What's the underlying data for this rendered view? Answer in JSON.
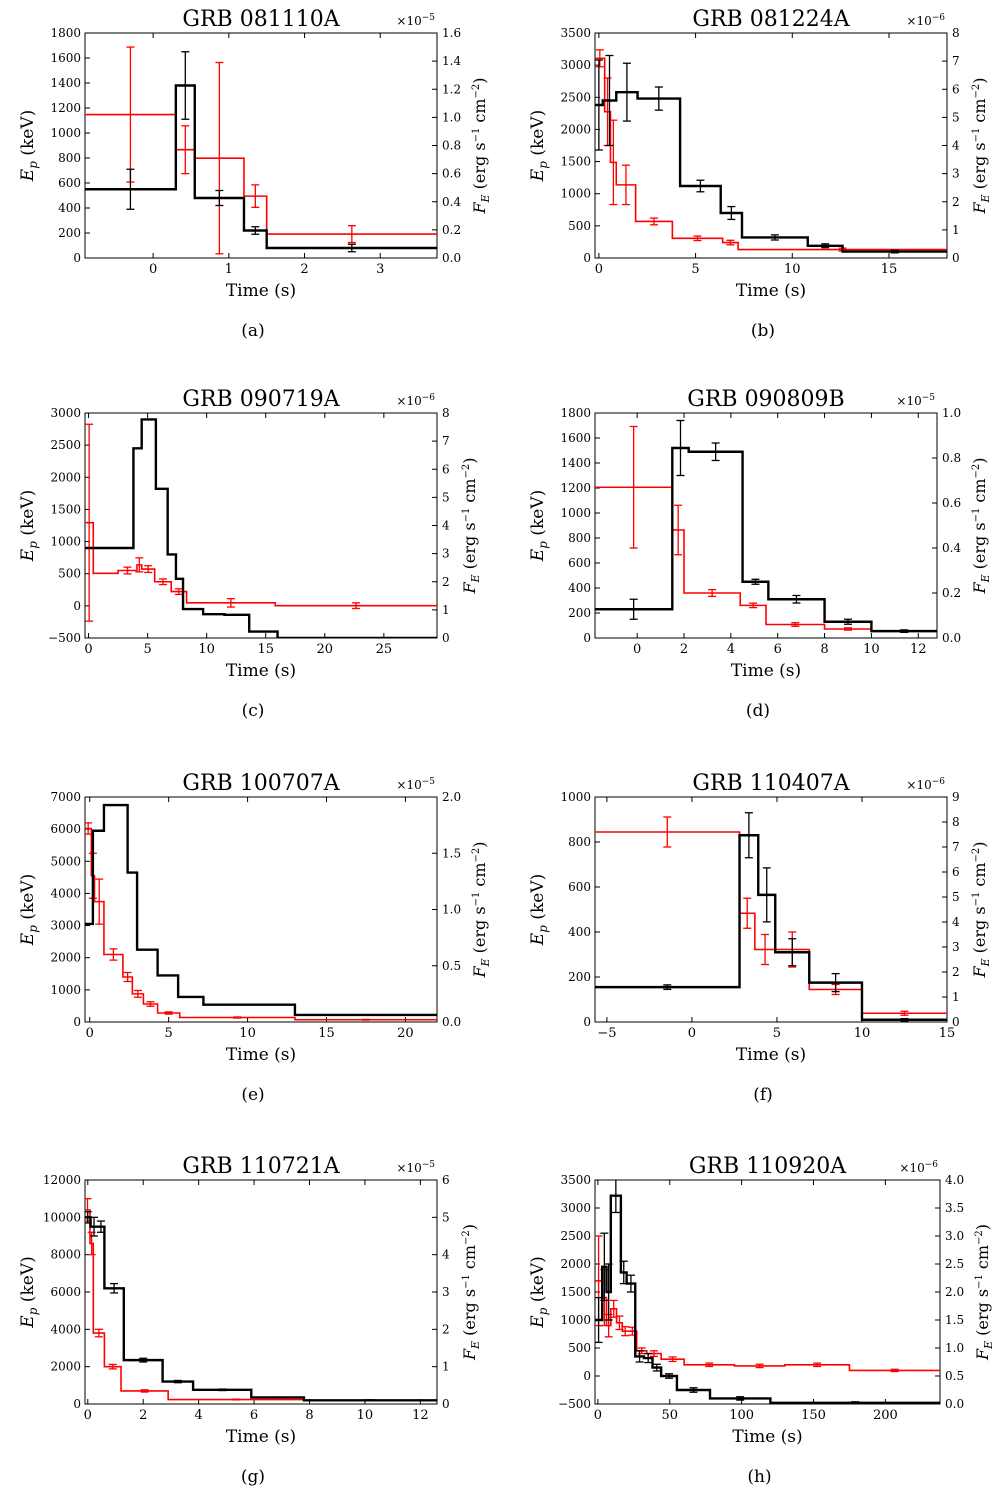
{
  "figure": {
    "ylabel_left_main": "E",
    "ylabel_left_sub": "p",
    "ylabel_left_unit": " (keV)",
    "ylabel_right_main": "F",
    "ylabel_right_sub": "E",
    "ylabel_right_unit": " (erg s",
    "ylabel_right_unit2": " cm",
    "ylabel_right_close": ")",
    "exp_neg1": "−1",
    "exp_neg2": "−2",
    "colors": {
      "ep": "#000000",
      "flux": "#ff0000"
    }
  },
  "chart_data": [
    {
      "type": "line",
      "title": "GRB 081110A",
      "panel_label": "(a)",
      "xlabel": "Time (s)",
      "xlim": [
        -0.9,
        3.75
      ],
      "xticks": [
        0,
        1,
        2,
        3
      ],
      "ylim_left": [
        0,
        1800
      ],
      "yticks_left": [
        0,
        200,
        400,
        600,
        800,
        1000,
        1200,
        1400,
        1600,
        1800
      ],
      "ylim_right": [
        0,
        1.6
      ],
      "yticks_right": [
        "0.0",
        "0.2",
        "0.4",
        "0.6",
        "0.8",
        "1.0",
        "1.2",
        "1.4",
        "1.6"
      ],
      "right_multiplier": "×10",
      "right_multiplier_exp": "−5",
      "ep_series": [
        [
          -0.9,
          0.3,
          550,
          160
        ],
        [
          0.3,
          0.55,
          1380,
          270
        ],
        [
          0.55,
          1.2,
          480,
          60
        ],
        [
          1.2,
          1.5,
          220,
          30
        ],
        [
          1.5,
          3.75,
          80,
          30
        ]
      ],
      "flux_series": [
        [
          -0.9,
          0.3,
          1.02,
          0.48
        ],
        [
          0.3,
          0.55,
          0.77,
          0.17
        ],
        [
          0.55,
          1.2,
          0.71,
          0.68
        ],
        [
          1.2,
          1.5,
          0.44,
          0.08
        ],
        [
          1.5,
          3.75,
          0.17,
          0.06
        ]
      ]
    },
    {
      "type": "line",
      "title": "GRB 081224A",
      "panel_label": "(b)",
      "xlabel": "Time (s)",
      "xlim": [
        -0.2,
        18
      ],
      "xticks": [
        0,
        5,
        10,
        15
      ],
      "ylim_left": [
        0,
        3500
      ],
      "yticks_left": [
        0,
        500,
        1000,
        1500,
        2000,
        2500,
        3000,
        3500
      ],
      "ylim_right": [
        0,
        8
      ],
      "yticks_right": [
        "0",
        "1",
        "2",
        "3",
        "4",
        "5",
        "6",
        "7",
        "8"
      ],
      "right_multiplier": "×10",
      "right_multiplier_exp": "−6",
      "ep_series": [
        [
          -0.2,
          0.2,
          2380,
          700
        ],
        [
          0.2,
          0.9,
          2450,
          700
        ],
        [
          0.9,
          2.0,
          2580,
          450
        ],
        [
          2.0,
          4.2,
          2480,
          180
        ],
        [
          4.2,
          6.3,
          1120,
          90
        ],
        [
          6.3,
          7.4,
          700,
          100
        ],
        [
          7.4,
          10.8,
          320,
          40
        ],
        [
          10.8,
          12.6,
          190,
          30
        ],
        [
          12.6,
          18,
          100,
          20
        ]
      ],
      "flux_series": [
        [
          -0.2,
          0.3,
          7.1,
          0.3
        ],
        [
          0.3,
          0.6,
          5.2,
          1.2
        ],
        [
          0.6,
          0.9,
          3.4,
          1.5
        ],
        [
          0.9,
          1.9,
          2.6,
          0.7
        ],
        [
          1.9,
          3.8,
          1.3,
          0.12
        ],
        [
          3.8,
          6.4,
          0.7,
          0.08
        ],
        [
          6.4,
          7.2,
          0.55,
          0.08
        ],
        [
          7.2,
          18,
          0.3,
          0.05
        ]
      ]
    },
    {
      "type": "line",
      "title": "GRB 090719A",
      "panel_label": "(c)",
      "xlabel": "Time (s)",
      "xlim": [
        -0.3,
        29.5
      ],
      "xticks": [
        0,
        5,
        10,
        15,
        20,
        25
      ],
      "ylim_left": [
        -500,
        3000
      ],
      "yticks_left": [
        -500,
        0,
        500,
        1000,
        1500,
        2000,
        2500,
        3000
      ],
      "ylim_right": [
        0,
        8
      ],
      "yticks_right": [
        "0",
        "1",
        "2",
        "3",
        "4",
        "5",
        "6",
        "7",
        "8"
      ],
      "right_multiplier": "×10",
      "right_multiplier_exp": "−6",
      "ep_series": [
        [
          -0.3,
          3.8,
          900,
          0
        ],
        [
          3.8,
          4.5,
          2450,
          0
        ],
        [
          4.5,
          5.7,
          2900,
          0
        ],
        [
          5.7,
          6.7,
          1820,
          0
        ],
        [
          6.7,
          7.4,
          800,
          0
        ],
        [
          7.4,
          8.0,
          420,
          0
        ],
        [
          8.0,
          9.7,
          -50,
          0
        ],
        [
          9.7,
          11.5,
          -130,
          0
        ],
        [
          11.5,
          13.6,
          -140,
          0
        ],
        [
          13.6,
          16.0,
          -400,
          0
        ],
        [
          16.0,
          29.5,
          -500,
          0
        ]
      ],
      "flux_series": [
        [
          -0.3,
          0.4,
          4.1,
          3.5
        ],
        [
          0.4,
          2.5,
          2.3,
          0
        ],
        [
          2.5,
          4.1,
          2.4,
          0.12
        ],
        [
          4.1,
          4.5,
          2.6,
          0.25
        ],
        [
          4.5,
          5.6,
          2.45,
          0.12
        ],
        [
          5.6,
          7.0,
          2.0,
          0.1
        ],
        [
          7.0,
          8.3,
          1.65,
          0.1
        ],
        [
          8.3,
          15.8,
          1.25,
          0.15
        ],
        [
          15.8,
          29.5,
          1.15,
          0.1
        ]
      ],
      "flux_err_points": [
        [
          2.2,
          2.3,
          0.12
        ],
        [
          11.2,
          1.25,
          0.15
        ],
        [
          13.4,
          1.15,
          0.12
        ],
        [
          15.3,
          1.3,
          0.2
        ],
        [
          23.2,
          1.15,
          0.1
        ]
      ]
    },
    {
      "type": "line",
      "title": "GRB 090809B",
      "panel_label": "(d)",
      "xlabel": "Time (s)",
      "xlim": [
        -1.8,
        12.8
      ],
      "xticks": [
        0,
        2,
        4,
        6,
        8,
        10,
        12
      ],
      "ylim_left": [
        0,
        1800
      ],
      "yticks_left": [
        0,
        200,
        400,
        600,
        800,
        1000,
        1200,
        1400,
        1600,
        1800
      ],
      "ylim_right": [
        0,
        1.0
      ],
      "yticks_right": [
        "0.0",
        "0.2",
        "0.4",
        "0.6",
        "0.8",
        "1.0"
      ],
      "right_multiplier": "×10",
      "right_multiplier_exp": "−5",
      "ep_series": [
        [
          -1.8,
          1.5,
          230,
          80
        ],
        [
          1.5,
          2.2,
          1520,
          220
        ],
        [
          2.2,
          4.5,
          1490,
          70
        ],
        [
          4.5,
          5.6,
          450,
          20
        ],
        [
          5.6,
          8.0,
          310,
          30
        ],
        [
          8.0,
          10.0,
          130,
          20
        ],
        [
          10.0,
          12.8,
          55,
          10
        ]
      ],
      "flux_series": [
        [
          -1.8,
          1.5,
          0.67,
          0.27
        ],
        [
          1.5,
          2.0,
          0.48,
          0.11
        ],
        [
          2.0,
          4.4,
          0.2,
          0.015
        ],
        [
          4.4,
          5.5,
          0.145,
          0.01
        ],
        [
          5.5,
          8.0,
          0.06,
          0.008
        ],
        [
          8.0,
          10.0,
          0.04,
          0.005
        ],
        [
          10.0,
          12.8,
          0.03,
          0.004
        ]
      ]
    },
    {
      "type": "line",
      "title": "GRB 100707A",
      "panel_label": "(e)",
      "xlabel": "Time (s)",
      "xlim": [
        -0.3,
        22
      ],
      "xticks": [
        0,
        5,
        10,
        15,
        20
      ],
      "ylim_left": [
        0,
        7000
      ],
      "yticks_left": [
        0,
        1000,
        2000,
        3000,
        4000,
        5000,
        6000,
        7000
      ],
      "ylim_right": [
        0,
        2.0
      ],
      "yticks_right": [
        "0.0",
        "0.5",
        "1.0",
        "1.5",
        "2.0"
      ],
      "right_multiplier": "×10",
      "right_multiplier_exp": "−5",
      "ep_series": [
        [
          -0.3,
          0.2,
          3050,
          0
        ],
        [
          0.2,
          0.9,
          5950,
          0
        ],
        [
          0.9,
          2.4,
          6750,
          0
        ],
        [
          2.4,
          3.0,
          4650,
          0
        ],
        [
          3.0,
          4.3,
          2250,
          0
        ],
        [
          4.3,
          5.6,
          1450,
          0
        ],
        [
          5.6,
          7.2,
          780,
          0
        ],
        [
          7.2,
          13.0,
          540,
          0
        ],
        [
          13.0,
          22,
          220,
          0
        ]
      ],
      "flux_series": [
        [
          -0.3,
          0.1,
          1.72,
          0.05
        ],
        [
          0.1,
          0.3,
          1.3,
          0.2
        ],
        [
          0.3,
          0.9,
          1.07,
          0.2
        ],
        [
          0.9,
          2.1,
          0.6,
          0.05
        ],
        [
          2.1,
          2.7,
          0.4,
          0.04
        ],
        [
          2.7,
          3.4,
          0.25,
          0.03
        ],
        [
          3.4,
          4.3,
          0.16,
          0.02
        ],
        [
          4.3,
          5.7,
          0.08,
          0.01
        ],
        [
          5.7,
          13.0,
          0.04,
          0.005
        ],
        [
          13.0,
          22,
          0.02,
          0.003
        ]
      ]
    },
    {
      "type": "line",
      "title": "GRB 110407A",
      "panel_label": "(f)",
      "xlabel": "Time (s)",
      "xlim": [
        -5.7,
        15
      ],
      "xticks": [
        -5,
        0,
        5,
        10,
        15
      ],
      "ylim_left": [
        0,
        1000
      ],
      "yticks_left": [
        0,
        200,
        400,
        600,
        800,
        1000
      ],
      "ylim_right": [
        0,
        9
      ],
      "yticks_right": [
        "0",
        "1",
        "2",
        "3",
        "4",
        "5",
        "6",
        "7",
        "8",
        "9"
      ],
      "right_multiplier": "×10",
      "right_multiplier_exp": "−6",
      "ep_series": [
        [
          -5.7,
          2.8,
          155,
          10
        ],
        [
          2.8,
          3.9,
          830,
          100
        ],
        [
          3.9,
          4.9,
          565,
          120
        ],
        [
          4.9,
          6.9,
          310,
          60
        ],
        [
          6.9,
          10.0,
          175,
          40
        ],
        [
          10.0,
          15,
          10,
          5
        ]
      ],
      "flux_series": [
        [
          -5.7,
          2.8,
          7.6,
          0.6
        ],
        [
          2.8,
          3.7,
          4.35,
          0.6
        ],
        [
          3.7,
          4.9,
          2.9,
          0.6
        ],
        [
          4.9,
          6.9,
          2.9,
          0.7
        ],
        [
          6.9,
          10.0,
          1.3,
          0.2
        ],
        [
          10.0,
          15,
          0.35,
          0.08
        ]
      ]
    },
    {
      "type": "line",
      "title": "GRB 110721A",
      "panel_label": "(g)",
      "xlabel": "Time (s)",
      "xlim": [
        -0.1,
        12.6
      ],
      "xticks": [
        0,
        2,
        4,
        6,
        8,
        10,
        12
      ],
      "ylim_left": [
        0,
        12000
      ],
      "yticks_left": [
        0,
        2000,
        4000,
        6000,
        8000,
        10000,
        12000
      ],
      "ylim_right": [
        0,
        6
      ],
      "yticks_right": [
        "0",
        "1",
        "2",
        "3",
        "4",
        "5",
        "6"
      ],
      "right_multiplier": "×10",
      "right_multiplier_exp": "−5",
      "ep_series": [
        [
          -0.1,
          0.1,
          10000,
          300
        ],
        [
          0.1,
          0.35,
          9500,
          500
        ],
        [
          0.35,
          0.6,
          9500,
          300
        ],
        [
          0.6,
          1.3,
          6200,
          250
        ],
        [
          1.3,
          2.7,
          2350,
          100
        ],
        [
          2.7,
          3.8,
          1200,
          60
        ],
        [
          3.8,
          5.9,
          760,
          40
        ],
        [
          5.9,
          7.8,
          350,
          20
        ],
        [
          7.8,
          12.6,
          200,
          20
        ]
      ],
      "flux_series": [
        [
          -0.1,
          0.08,
          5.2,
          0.3
        ],
        [
          0.08,
          0.2,
          4.3,
          0.3
        ],
        [
          0.2,
          0.6,
          1.9,
          0.1
        ],
        [
          0.6,
          1.2,
          1.0,
          0.06
        ],
        [
          1.2,
          2.9,
          0.35,
          0.03
        ],
        [
          2.9,
          7.8,
          0.12,
          0.01
        ],
        [
          7.8,
          12.6,
          0.1,
          0.01
        ]
      ]
    },
    {
      "type": "line",
      "title": "GRB 110920A",
      "panel_label": "(h)",
      "xlabel": "Time (s)",
      "xlim": [
        -2,
        238
      ],
      "xticks": [
        0,
        50,
        100,
        150,
        200
      ],
      "ylim_left": [
        -500,
        3500
      ],
      "yticks_left": [
        -500,
        0,
        500,
        1000,
        1500,
        2000,
        2500,
        3000,
        3500
      ],
      "ylim_right": [
        0,
        4.0
      ],
      "yticks_right": [
        "0.0",
        "0.5",
        "1.0",
        "1.5",
        "2.0",
        "2.5",
        "3.0",
        "3.5",
        "4.0"
      ],
      "right_multiplier": "×10",
      "right_multiplier_exp": "−6",
      "ep_series": [
        [
          -2,
          3,
          1000,
          400
        ],
        [
          3,
          6,
          1950,
          600
        ],
        [
          6,
          9,
          1500,
          500
        ],
        [
          9,
          16,
          3220,
          300
        ],
        [
          16,
          20,
          1850,
          200
        ],
        [
          20,
          26,
          1650,
          150
        ],
        [
          26,
          32,
          350,
          100
        ],
        [
          32,
          38,
          320,
          80
        ],
        [
          38,
          44,
          150,
          60
        ],
        [
          44,
          55,
          0,
          40
        ],
        [
          55,
          78,
          -250,
          40
        ],
        [
          78,
          120,
          -400,
          30
        ],
        [
          120,
          238,
          -480,
          20
        ]
      ],
      "flux_series": [
        [
          -2,
          3,
          2.2,
          0.8
        ],
        [
          3,
          6,
          1.9,
          0.5
        ],
        [
          6,
          9,
          1.4,
          0.2
        ],
        [
          9,
          13,
          1.7,
          0.15
        ],
        [
          13,
          17,
          1.45,
          0.12
        ],
        [
          17,
          21,
          1.3,
          0.08
        ],
        [
          21,
          27,
          1.3,
          0.07
        ],
        [
          27,
          34,
          0.95,
          0.05
        ],
        [
          34,
          44,
          0.9,
          0.05
        ],
        [
          44,
          60,
          0.8,
          0.04
        ],
        [
          60,
          95,
          0.7,
          0.03
        ],
        [
          95,
          130,
          0.68,
          0.03
        ],
        [
          130,
          175,
          0.7,
          0.03
        ],
        [
          175,
          238,
          0.6,
          0.02
        ]
      ]
    }
  ]
}
